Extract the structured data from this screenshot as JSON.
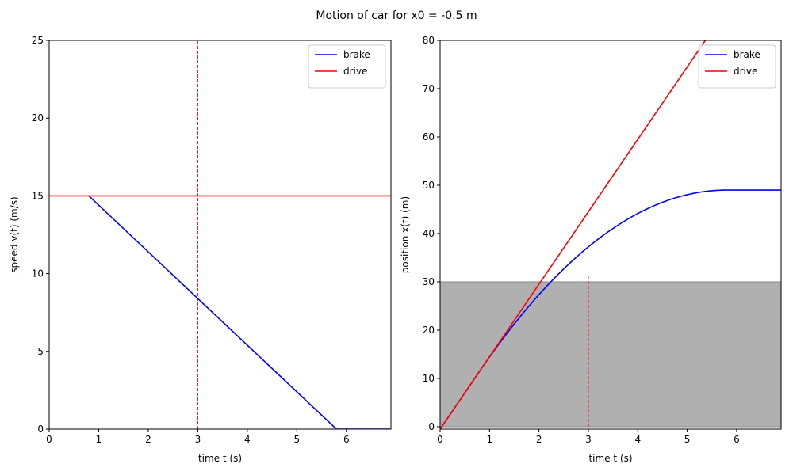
{
  "figure": {
    "title": "Motion of car for x0 = -0.5 m"
  },
  "chart_data": [
    {
      "type": "line",
      "xlabel": "time t (s)",
      "ylabel": "speed v(t) (m/s)",
      "xlim": [
        0,
        6.9
      ],
      "ylim": [
        0,
        25
      ],
      "xticks": [
        0,
        1,
        2,
        3,
        4,
        5,
        6
      ],
      "yticks": [
        0,
        5,
        10,
        15,
        20,
        25
      ],
      "legend_position": "top-right",
      "series": [
        {
          "name": "brake",
          "color": "#0000ff",
          "x": [
            0.8,
            5.8,
            6.9
          ],
          "y": [
            15,
            0,
            0
          ]
        },
        {
          "name": "drive",
          "color": "#ff0000",
          "x": [
            0,
            6.9
          ],
          "y": [
            15,
            15
          ]
        }
      ],
      "vlines": [
        {
          "x": 3,
          "y0": 0,
          "y1": 25,
          "color": "#ff0000",
          "style": "dashed"
        }
      ]
    },
    {
      "type": "line",
      "xlabel": "time t (s)",
      "ylabel": "position x(t) (m)",
      "xlim": [
        0,
        6.9
      ],
      "ylim": [
        -0.5,
        80
      ],
      "xticks": [
        0,
        1,
        2,
        3,
        4,
        5,
        6
      ],
      "yticks": [
        0,
        10,
        20,
        30,
        40,
        50,
        60,
        70,
        80
      ],
      "legend_position": "top-right",
      "shaded_region": {
        "y0": 0,
        "y1": 30,
        "color": "#b0b0b0"
      },
      "series": [
        {
          "name": "brake",
          "color": "#0000ff",
          "model": "brake",
          "x0": -0.5,
          "v0": 15,
          "t_react": 0.8,
          "t_stop": 5.8,
          "t_end": 6.9
        },
        {
          "name": "drive",
          "color": "#ff0000",
          "x": [
            0,
            5.5
          ],
          "y": [
            -0.5,
            82
          ]
        }
      ],
      "vlines": [
        {
          "x": 3,
          "y0": 0,
          "y1": 31.5,
          "color": "#ff0000",
          "style": "dashed"
        }
      ]
    }
  ]
}
